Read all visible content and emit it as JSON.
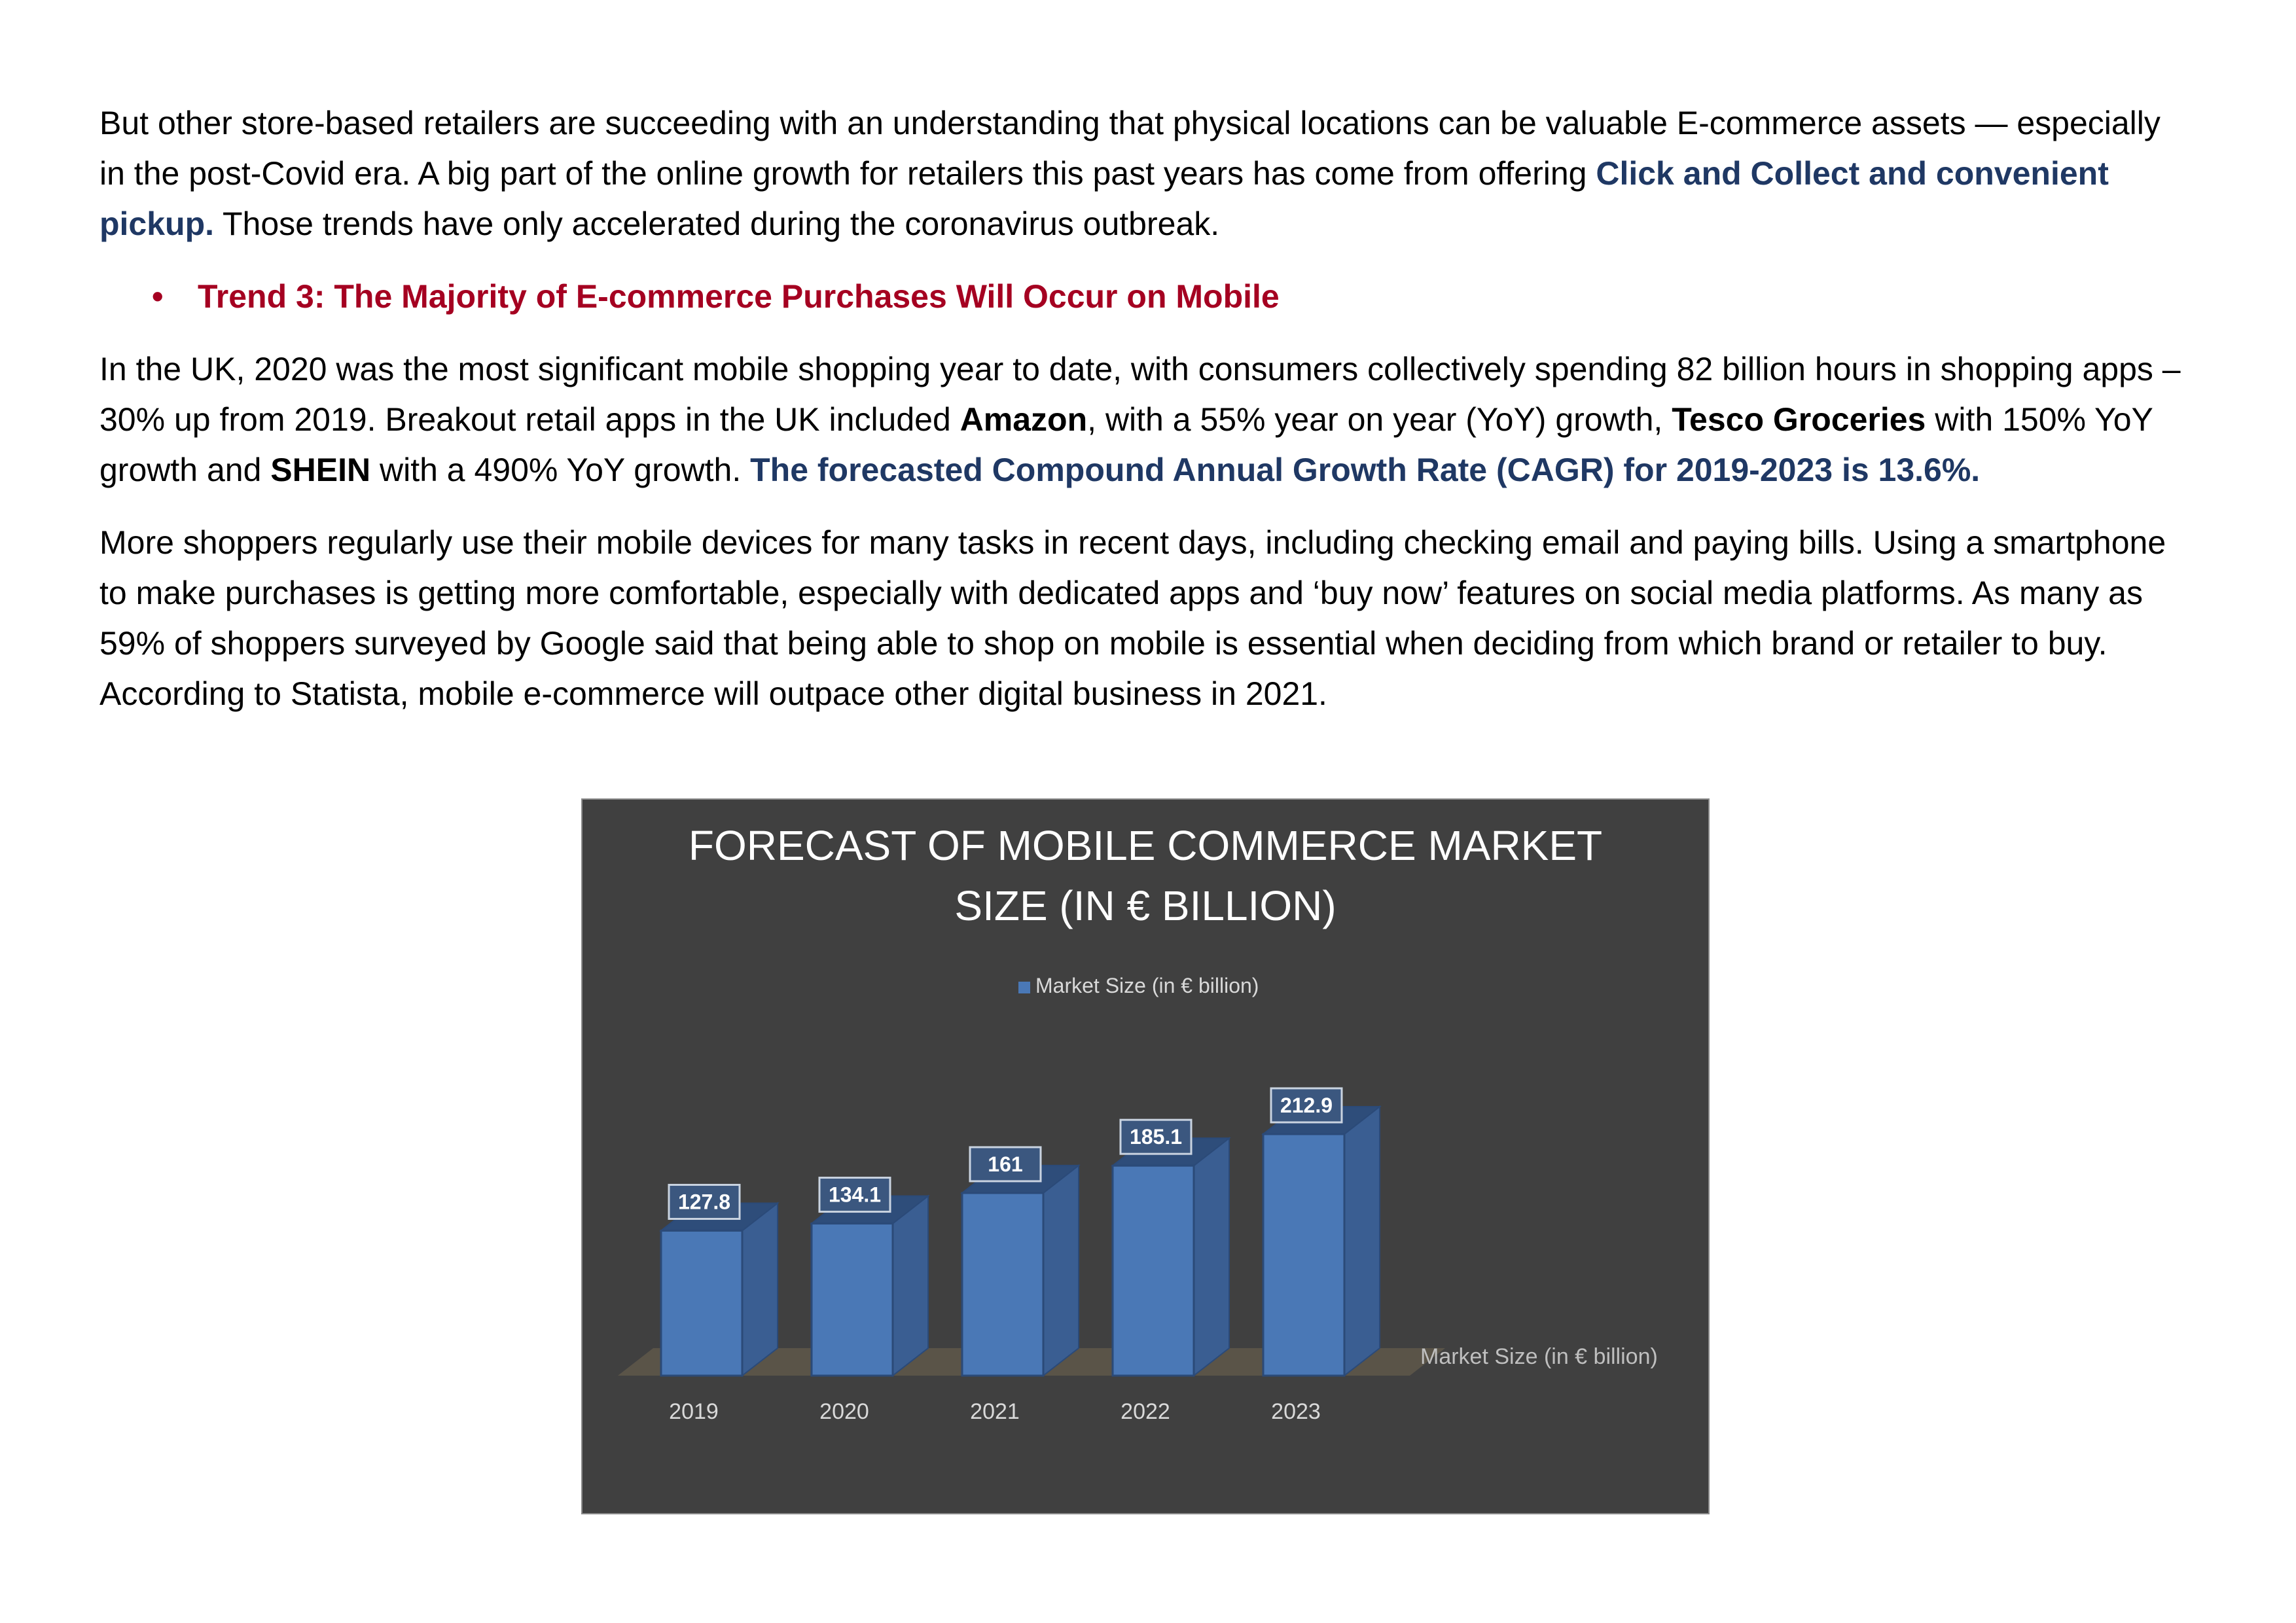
{
  "para1": {
    "t1": "But other store-based retailers are succeeding with an understanding that physical locations can be valuable E-commerce assets — especially in the post-Covid era. A big part of the online growth for retailers this past years has come from offering ",
    "hl": "Click and Collect and convenient pickup.",
    "t2": " Those trends have only accelerated during the coronavirus outbreak."
  },
  "bullet": {
    "symbol": "•",
    "text": "Trend 3: The Majority of E-commerce Purchases Will Occur on Mobile"
  },
  "para2": {
    "t1": "In the UK, 2020 was the most significant mobile shopping year to date, with consumers collectively spending 82 billion hours in shopping apps – 30% up from 2019. Breakout retail apps in the UK included ",
    "b1": "Amazon",
    "t2": ", with a 55% year on year (YoY) growth, ",
    "b2": "Tesco Groceries",
    "t3": " with 150% YoY growth and ",
    "b3": "SHEIN",
    "t4": " with a 490% YoY growth. ",
    "hl": "The forecasted Compound Annual Growth Rate (CAGR) for 2019-2023 is 13.6%."
  },
  "para3": {
    "text": "More shoppers regularly use their mobile devices for many tasks in recent days, including checking email and paying bills. Using a smartphone to make purchases is getting more comfortable, especially with dedicated apps and ‘buy now’ features on social media platforms. As many as 59% of shoppers surveyed by Google said that being able to shop on mobile is essential when deciding from which brand or retailer to buy. According to Statista, mobile e-commerce will outpace other digital business in 2021."
  },
  "chart_data": {
    "type": "bar",
    "title_line1": "FORECAST OF MOBILE COMMERCE MARKET",
    "title_line2": "SIZE (IN € BILLION)",
    "legend": "Market Size (in € billion)",
    "depth_axis_label": "Market Size (in € billion)",
    "categories": [
      "2019",
      "2020",
      "2021",
      "2022",
      "2023"
    ],
    "series": [
      {
        "name": "Market Size (in € billion)",
        "values": [
          127.8,
          134.1,
          161,
          185.1,
          212.9
        ]
      }
    ],
    "ylim": [
      0,
      250
    ],
    "grid": false,
    "legend_position": "top",
    "colors": {
      "background": "#404040",
      "bar": "#4a78b6",
      "bar_side": "#3a5e92",
      "bar_top": "#2e4d7a",
      "floor": "#5a5448",
      "text": "#d9d9d9",
      "title": "#ffffff"
    }
  }
}
